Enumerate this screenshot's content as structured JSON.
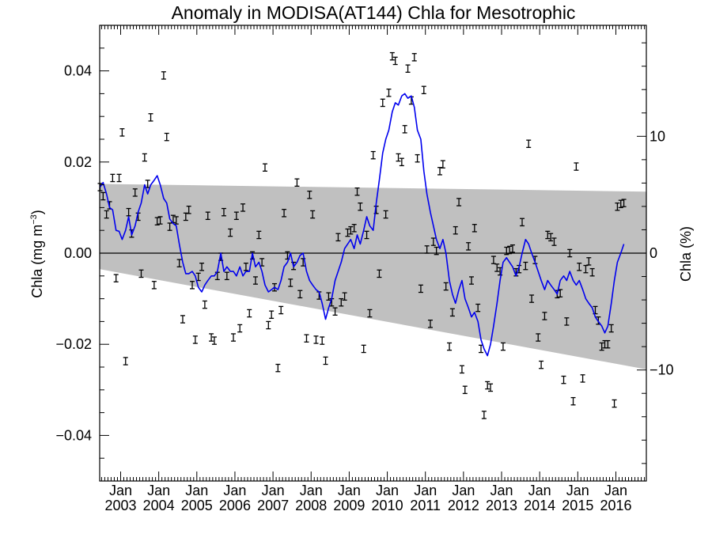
{
  "chart_data": {
    "type": "scatter",
    "title": "Anomaly in MODISA(AT144) Chla for Mesotrophic",
    "ylabel_left": {
      "base": "Chla (mg m",
      "sup": "−3",
      "close": ")"
    },
    "ylabel_right": "Chla (%)",
    "ylim": [
      -0.05,
      0.05
    ],
    "y2lim": [
      -19.5,
      19.5
    ],
    "xlim": [
      2002.45,
      2016.8
    ],
    "x_major_ticks": [
      2003,
      2004,
      2005,
      2006,
      2007,
      2008,
      2009,
      2010,
      2011,
      2012,
      2013,
      2014,
      2015,
      2016
    ],
    "x_tick_labels": [
      {
        "x": 2003,
        "line1": "Jan",
        "line2": "2003"
      },
      {
        "x": 2004,
        "line1": "Jan",
        "line2": "2004"
      },
      {
        "x": 2005,
        "line1": "Jan",
        "line2": "2005"
      },
      {
        "x": 2006,
        "line1": "Jan",
        "line2": "2006"
      },
      {
        "x": 2007,
        "line1": "Jan",
        "line2": "2007"
      },
      {
        "x": 2008,
        "line1": "Jan",
        "line2": "2008"
      },
      {
        "x": 2009,
        "line1": "Jan",
        "line2": "2009"
      },
      {
        "x": 2010,
        "line1": "Jan",
        "line2": "2010"
      },
      {
        "x": 2011,
        "line1": "Jan",
        "line2": "2011"
      },
      {
        "x": 2012,
        "line1": "Jan",
        "line2": "2012"
      },
      {
        "x": 2013,
        "line1": "Jan",
        "line2": "2013"
      },
      {
        "x": 2014,
        "line1": "Jan",
        "line2": "2014"
      },
      {
        "x": 2015,
        "line1": "Jan",
        "line2": "2015"
      },
      {
        "x": 2016,
        "line1": "Jan",
        "line2": "2016"
      }
    ],
    "y_ticks_left": [
      {
        "v": 0.04,
        "label": "0.04"
      },
      {
        "v": 0.02,
        "label": "0.02"
      },
      {
        "v": 0.0,
        "label": "0.00"
      },
      {
        "v": -0.02,
        "label": "−0.02"
      },
      {
        "v": -0.04,
        "label": "−0.04"
      }
    ],
    "y_ticks_right": [
      {
        "v": 10,
        "label": "10"
      },
      {
        "v": 0,
        "label": "0"
      },
      {
        "v": -10,
        "label": "−10"
      }
    ],
    "y_minor_left_step": 0.005,
    "y_minor_right_step": 2,
    "zero_line": 0,
    "envelope": {
      "x": [
        2002.45,
        2016.8
      ],
      "upper": [
        0.0152,
        0.0135
      ],
      "lower": [
        -0.0035,
        -0.0255
      ],
      "color": "#c0c0c0"
    },
    "colors": {
      "line": "#0000ee",
      "points": "#000000",
      "envelope": "#c0c0c0"
    },
    "monthly_anomaly": [
      [
        2002.46,
        0.0145
      ],
      [
        2002.54,
        0.0125
      ],
      [
        2002.63,
        0.0085
      ],
      [
        2002.71,
        0.0105
      ],
      [
        2002.79,
        0.0165
      ],
      [
        2002.88,
        -0.0055
      ],
      [
        2002.96,
        0.0165
      ],
      [
        2003.04,
        0.0265
      ],
      [
        2003.13,
        -0.0237
      ],
      [
        2003.21,
        0.009
      ],
      [
        2003.29,
        0.0043
      ],
      [
        2003.38,
        0.0133
      ],
      [
        2003.46,
        0.008
      ],
      [
        2003.54,
        -0.0045
      ],
      [
        2003.63,
        0.021
      ],
      [
        2003.71,
        0.0152
      ],
      [
        2003.79,
        0.0298
      ],
      [
        2003.88,
        -0.007
      ],
      [
        2003.96,
        0.007
      ],
      [
        2004.04,
        0.0072
      ],
      [
        2004.13,
        0.039
      ],
      [
        2004.21,
        0.0255
      ],
      [
        2004.29,
        0.0058
      ],
      [
        2004.38,
        0.0075
      ],
      [
        2004.46,
        0.0072
      ],
      [
        2004.54,
        -0.0022
      ],
      [
        2004.63,
        -0.0145
      ],
      [
        2004.71,
        0.008
      ],
      [
        2004.79,
        0.0095
      ],
      [
        2004.88,
        -0.007
      ],
      [
        2004.96,
        -0.019
      ],
      [
        2005.04,
        -0.0052
      ],
      [
        2005.13,
        -0.003
      ],
      [
        2005.21,
        -0.0113
      ],
      [
        2005.29,
        0.0082
      ],
      [
        2005.38,
        -0.0185
      ],
      [
        2005.46,
        -0.0192
      ],
      [
        2005.54,
        -0.005
      ],
      [
        2005.63,
        -0.0008
      ],
      [
        2005.71,
        0.009
      ],
      [
        2005.79,
        -0.005
      ],
      [
        2005.88,
        0.0045
      ],
      [
        2005.96,
        -0.0185
      ],
      [
        2006.04,
        0.0082
      ],
      [
        2006.13,
        -0.0165
      ],
      [
        2006.21,
        0.01
      ],
      [
        2006.29,
        -0.003
      ],
      [
        2006.38,
        -0.0132
      ],
      [
        2006.46,
        -0.0005
      ],
      [
        2006.54,
        -0.006
      ],
      [
        2006.63,
        0.004
      ],
      [
        2006.71,
        -0.002
      ],
      [
        2006.79,
        0.0188
      ],
      [
        2006.88,
        -0.0158
      ],
      [
        2006.96,
        -0.0135
      ],
      [
        2007.04,
        -0.0075
      ],
      [
        2007.13,
        -0.0252
      ],
      [
        2007.21,
        -0.0125
      ],
      [
        2007.29,
        0.0088
      ],
      [
        2007.38,
        -0.0005
      ],
      [
        2007.46,
        -0.0065
      ],
      [
        2007.54,
        -0.0028
      ],
      [
        2007.63,
        0.0155
      ],
      [
        2007.71,
        -0.009
      ],
      [
        2007.79,
        -0.002
      ],
      [
        2007.88,
        -0.0187
      ],
      [
        2007.96,
        0.0128
      ],
      [
        2008.04,
        0.0085
      ],
      [
        2008.13,
        -0.019
      ],
      [
        2008.21,
        -0.0093
      ],
      [
        2008.29,
        -0.0192
      ],
      [
        2008.38,
        -0.0236
      ],
      [
        2008.46,
        -0.0095
      ],
      [
        2008.54,
        -0.0108
      ],
      [
        2008.63,
        -0.0128
      ],
      [
        2008.71,
        0.0035
      ],
      [
        2008.79,
        -0.0108
      ],
      [
        2008.88,
        -0.0095
      ],
      [
        2008.96,
        0.0045
      ],
      [
        2009.04,
        0.005
      ],
      [
        2009.13,
        0.0055
      ],
      [
        2009.21,
        0.0135
      ],
      [
        2009.29,
        0.0102
      ],
      [
        2009.38,
        -0.021
      ],
      [
        2009.46,
        0.004
      ],
      [
        2009.54,
        -0.0132
      ],
      [
        2009.63,
        0.0215
      ],
      [
        2009.71,
        0.0095
      ],
      [
        2009.79,
        -0.0045
      ],
      [
        2009.88,
        0.033
      ],
      [
        2009.96,
        0.0085
      ],
      [
        2010.04,
        0.0352
      ],
      [
        2010.13,
        0.0432
      ],
      [
        2010.21,
        0.0422
      ],
      [
        2010.29,
        0.021
      ],
      [
        2010.38,
        0.02
      ],
      [
        2010.46,
        0.0272
      ],
      [
        2010.54,
        0.0405
      ],
      [
        2010.63,
        0.0335
      ],
      [
        2010.71,
        0.043
      ],
      [
        2010.79,
        0.0208
      ],
      [
        2010.88,
        -0.0078
      ],
      [
        2010.96,
        0.0358
      ],
      [
        2011.04,
        0.0008
      ],
      [
        2011.13,
        -0.0155
      ],
      [
        2011.21,
        0.0025
      ],
      [
        2011.29,
        0.0005
      ],
      [
        2011.38,
        0.018
      ],
      [
        2011.46,
        0.0195
      ],
      [
        2011.54,
        -0.0073
      ],
      [
        2011.63,
        -0.0205
      ],
      [
        2011.71,
        -0.013
      ],
      [
        2011.79,
        0.005
      ],
      [
        2011.88,
        0.0112
      ],
      [
        2011.96,
        -0.0255
      ],
      [
        2012.04,
        -0.03
      ],
      [
        2012.13,
        0.0015
      ],
      [
        2012.21,
        -0.006
      ],
      [
        2012.29,
        0.0055
      ],
      [
        2012.38,
        -0.012
      ],
      [
        2012.46,
        -0.021
      ],
      [
        2012.54,
        -0.0355
      ],
      [
        2012.63,
        -0.029
      ],
      [
        2012.71,
        -0.0295
      ],
      [
        2012.79,
        -0.0015
      ],
      [
        2012.88,
        -0.0032
      ],
      [
        2012.96,
        -0.004
      ],
      [
        2013.04,
        -0.0205
      ],
      [
        2013.13,
        0.0005
      ],
      [
        2013.21,
        0.0007
      ],
      [
        2013.29,
        0.001
      ],
      [
        2013.38,
        -0.0042
      ],
      [
        2013.46,
        -0.0035
      ],
      [
        2013.54,
        0.0068
      ],
      [
        2013.63,
        -0.0028
      ],
      [
        2013.71,
        0.024
      ],
      [
        2013.79,
        -0.01
      ],
      [
        2013.88,
        -0.0015
      ],
      [
        2013.96,
        -0.0185
      ],
      [
        2014.04,
        -0.0245
      ],
      [
        2014.13,
        -0.0138
      ],
      [
        2014.21,
        0.004
      ],
      [
        2014.29,
        0.0035
      ],
      [
        2014.38,
        0.0025
      ],
      [
        2014.46,
        -0.009
      ],
      [
        2014.54,
        -0.0088
      ],
      [
        2014.63,
        -0.0278
      ],
      [
        2014.71,
        -0.015
      ],
      [
        2014.79,
        0.0
      ],
      [
        2014.88,
        -0.0325
      ],
      [
        2014.96,
        0.019
      ],
      [
        2015.04,
        -0.003
      ],
      [
        2015.13,
        -0.0275
      ],
      [
        2015.21,
        -0.0035
      ],
      [
        2015.29,
        -0.0018
      ],
      [
        2015.38,
        -0.0042
      ],
      [
        2015.46,
        -0.0125
      ],
      [
        2015.54,
        -0.0148
      ],
      [
        2015.63,
        -0.0205
      ],
      [
        2015.71,
        -0.02
      ],
      [
        2015.79,
        -0.02
      ],
      [
        2015.88,
        -0.0165
      ],
      [
        2015.96,
        -0.033
      ],
      [
        2016.04,
        0.0102
      ],
      [
        2016.13,
        0.0108
      ],
      [
        2016.21,
        0.011
      ]
    ],
    "smoothed_line": [
      [
        2002.46,
        0.0145
      ],
      [
        2002.54,
        0.0155
      ],
      [
        2002.63,
        0.013
      ],
      [
        2002.71,
        0.01
      ],
      [
        2002.79,
        0.0095
      ],
      [
        2002.88,
        0.005
      ],
      [
        2002.96,
        0.0048
      ],
      [
        2003.04,
        0.003
      ],
      [
        2003.13,
        0.005
      ],
      [
        2003.21,
        0.008
      ],
      [
        2003.29,
        0.004
      ],
      [
        2003.38,
        0.006
      ],
      [
        2003.46,
        0.009
      ],
      [
        2003.54,
        0.011
      ],
      [
        2003.63,
        0.015
      ],
      [
        2003.71,
        0.013
      ],
      [
        2003.79,
        0.015
      ],
      [
        2003.88,
        0.016
      ],
      [
        2003.96,
        0.017
      ],
      [
        2004.04,
        0.015
      ],
      [
        2004.13,
        0.012
      ],
      [
        2004.21,
        0.011
      ],
      [
        2004.29,
        0.0075
      ],
      [
        2004.38,
        0.0065
      ],
      [
        2004.46,
        0.006
      ],
      [
        2004.54,
        0.002
      ],
      [
        2004.63,
        -0.002
      ],
      [
        2004.71,
        -0.0045
      ],
      [
        2004.79,
        -0.0045
      ],
      [
        2004.88,
        -0.004
      ],
      [
        2004.96,
        -0.005
      ],
      [
        2005.04,
        -0.0075
      ],
      [
        2005.13,
        -0.0085
      ],
      [
        2005.21,
        -0.007
      ],
      [
        2005.29,
        -0.006
      ],
      [
        2005.38,
        -0.005
      ],
      [
        2005.46,
        -0.005
      ],
      [
        2005.54,
        -0.004
      ],
      [
        2005.63,
        0.0
      ],
      [
        2005.71,
        -0.004
      ],
      [
        2005.79,
        -0.003
      ],
      [
        2005.88,
        -0.004
      ],
      [
        2005.96,
        -0.004
      ],
      [
        2006.04,
        -0.005
      ],
      [
        2006.13,
        -0.003
      ],
      [
        2006.21,
        -0.005
      ],
      [
        2006.29,
        -0.004
      ],
      [
        2006.38,
        -0.004
      ],
      [
        2006.46,
        0.0
      ],
      [
        2006.54,
        -0.003
      ],
      [
        2006.63,
        -0.002
      ],
      [
        2006.71,
        -0.004
      ],
      [
        2006.79,
        -0.007
      ],
      [
        2006.88,
        -0.0085
      ],
      [
        2006.96,
        -0.008
      ],
      [
        2007.04,
        -0.0075
      ],
      [
        2007.13,
        -0.008
      ],
      [
        2007.21,
        -0.006
      ],
      [
        2007.29,
        -0.003
      ],
      [
        2007.38,
        -0.002
      ],
      [
        2007.46,
        0.0
      ],
      [
        2007.54,
        -0.003
      ],
      [
        2007.63,
        -0.002
      ],
      [
        2007.71,
        -0.0005
      ],
      [
        2007.79,
        0.0
      ],
      [
        2007.88,
        -0.004
      ],
      [
        2007.96,
        -0.006
      ],
      [
        2008.04,
        -0.007
      ],
      [
        2008.13,
        -0.008
      ],
      [
        2008.21,
        -0.0085
      ],
      [
        2008.29,
        -0.011
      ],
      [
        2008.38,
        -0.0145
      ],
      [
        2008.46,
        -0.012
      ],
      [
        2008.54,
        -0.01
      ],
      [
        2008.63,
        -0.006
      ],
      [
        2008.71,
        -0.004
      ],
      [
        2008.79,
        -0.002
      ],
      [
        2008.88,
        0.001
      ],
      [
        2008.96,
        0.002
      ],
      [
        2009.04,
        0.003
      ],
      [
        2009.13,
        0.001
      ],
      [
        2009.21,
        0.004
      ],
      [
        2009.29,
        0.002
      ],
      [
        2009.38,
        0.005
      ],
      [
        2009.46,
        0.008
      ],
      [
        2009.54,
        0.006
      ],
      [
        2009.63,
        0.005
      ],
      [
        2009.71,
        0.011
      ],
      [
        2009.79,
        0.016
      ],
      [
        2009.88,
        0.022
      ],
      [
        2009.96,
        0.025
      ],
      [
        2010.04,
        0.027
      ],
      [
        2010.13,
        0.031
      ],
      [
        2010.21,
        0.033
      ],
      [
        2010.29,
        0.0325
      ],
      [
        2010.38,
        0.0345
      ],
      [
        2010.46,
        0.035
      ],
      [
        2010.54,
        0.034
      ],
      [
        2010.63,
        0.0345
      ],
      [
        2010.71,
        0.032
      ],
      [
        2010.79,
        0.027
      ],
      [
        2010.88,
        0.025
      ],
      [
        2010.96,
        0.018
      ],
      [
        2011.04,
        0.013
      ],
      [
        2011.13,
        0.009
      ],
      [
        2011.21,
        0.006
      ],
      [
        2011.29,
        0.003
      ],
      [
        2011.38,
        0.001
      ],
      [
        2011.46,
        0.003
      ],
      [
        2011.54,
        0.0
      ],
      [
        2011.63,
        -0.006
      ],
      [
        2011.71,
        -0.009
      ],
      [
        2011.79,
        -0.011
      ],
      [
        2011.88,
        -0.008
      ],
      [
        2011.96,
        -0.006
      ],
      [
        2012.04,
        -0.01
      ],
      [
        2012.13,
        -0.012
      ],
      [
        2012.21,
        -0.014
      ],
      [
        2012.29,
        -0.013
      ],
      [
        2012.38,
        -0.015
      ],
      [
        2012.46,
        -0.019
      ],
      [
        2012.54,
        -0.021
      ],
      [
        2012.63,
        -0.0225
      ],
      [
        2012.71,
        -0.02
      ],
      [
        2012.79,
        -0.016
      ],
      [
        2012.88,
        -0.011
      ],
      [
        2012.96,
        -0.006
      ],
      [
        2013.04,
        -0.002
      ],
      [
        2013.13,
        -0.001
      ],
      [
        2013.21,
        -0.002
      ],
      [
        2013.29,
        -0.003
      ],
      [
        2013.38,
        -0.005
      ],
      [
        2013.46,
        -0.003
      ],
      [
        2013.54,
        0.0
      ],
      [
        2013.63,
        0.003
      ],
      [
        2013.71,
        0.002
      ],
      [
        2013.79,
        0.0
      ],
      [
        2013.88,
        -0.002
      ],
      [
        2013.96,
        -0.004
      ],
      [
        2014.04,
        -0.006
      ],
      [
        2014.13,
        -0.008
      ],
      [
        2014.21,
        -0.006
      ],
      [
        2014.29,
        -0.007
      ],
      [
        2014.38,
        -0.008
      ],
      [
        2014.46,
        -0.009
      ],
      [
        2014.54,
        -0.006
      ],
      [
        2014.63,
        -0.005
      ],
      [
        2014.71,
        -0.006
      ],
      [
        2014.79,
        -0.004
      ],
      [
        2014.88,
        -0.006
      ],
      [
        2014.96,
        -0.007
      ],
      [
        2015.04,
        -0.006
      ],
      [
        2015.13,
        -0.008
      ],
      [
        2015.21,
        -0.01
      ],
      [
        2015.29,
        -0.011
      ],
      [
        2015.38,
        -0.012
      ],
      [
        2015.46,
        -0.014
      ],
      [
        2015.54,
        -0.015
      ],
      [
        2015.63,
        -0.016
      ],
      [
        2015.71,
        -0.0175
      ],
      [
        2015.79,
        -0.016
      ],
      [
        2015.88,
        -0.011
      ],
      [
        2015.96,
        -0.006
      ],
      [
        2016.04,
        -0.002
      ],
      [
        2016.13,
        0.0
      ],
      [
        2016.21,
        0.002
      ]
    ],
    "error_bar_halfwidth": 0.0008
  }
}
